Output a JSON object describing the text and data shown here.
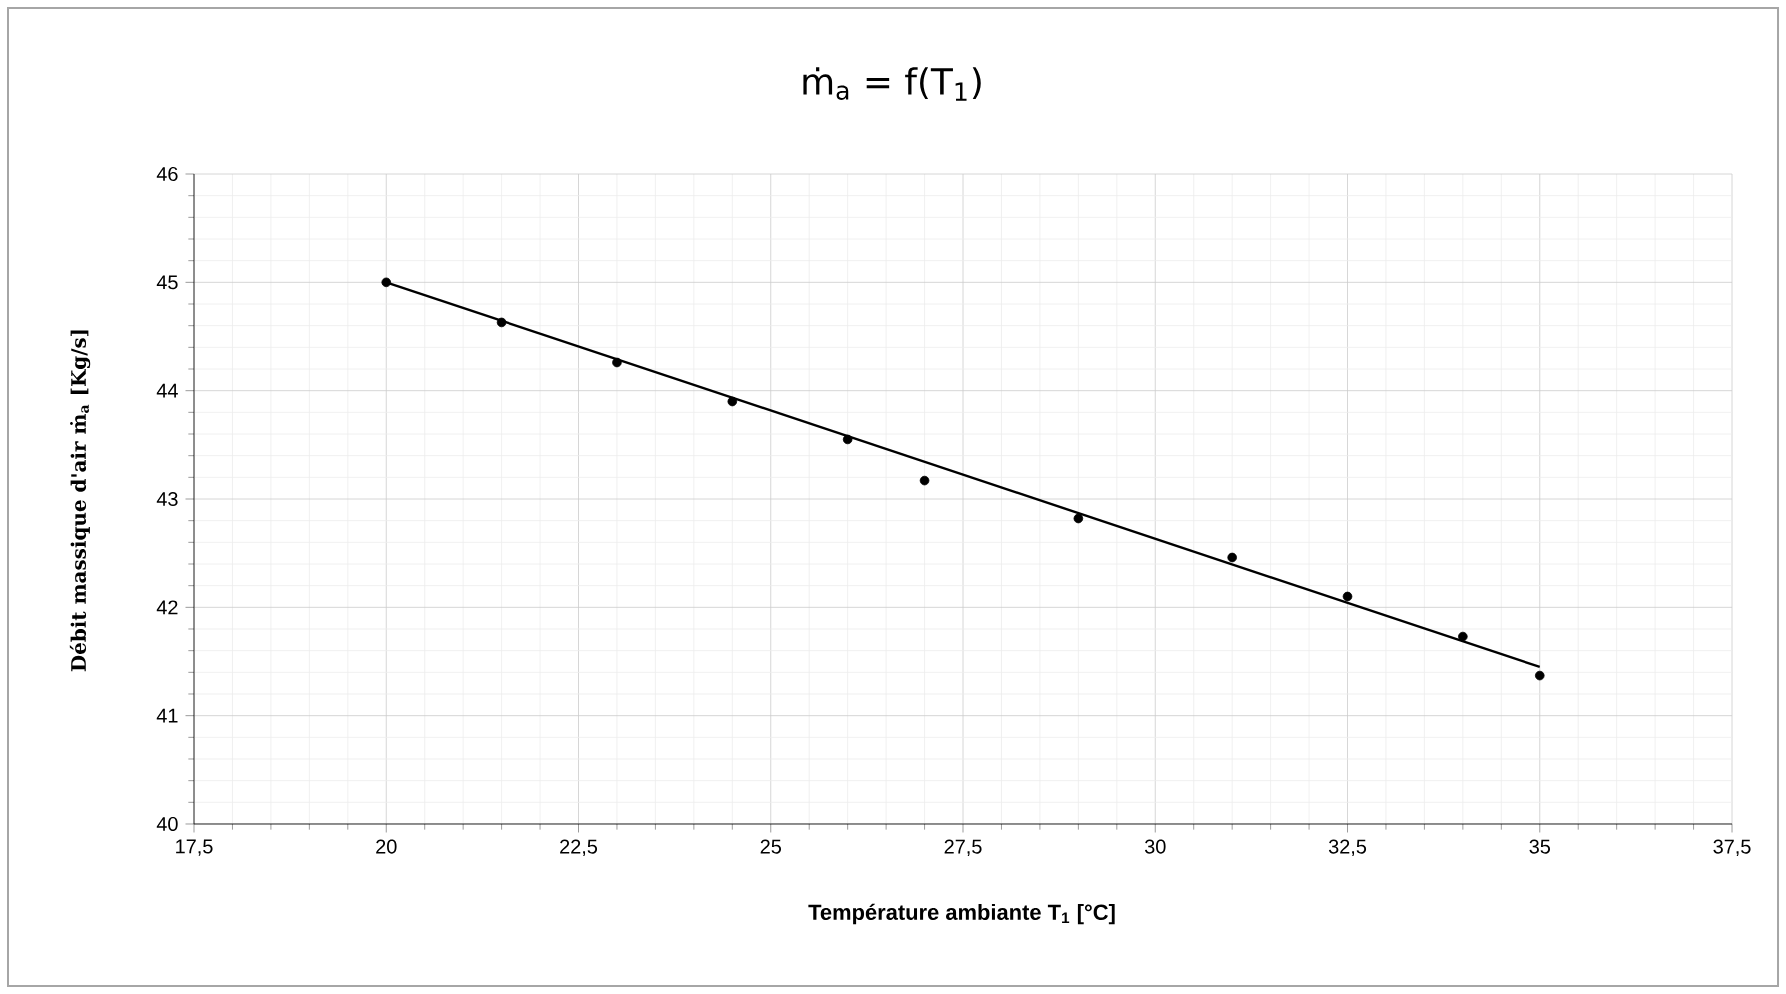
{
  "chart_data": {
    "type": "scatter",
    "title": "ṁ$_{a}$ = f(T$_{1}$)",
    "xlabel": "Température ambiante T$_{1}$ [°C]",
    "ylabel": "Débit massique d'air ṁ$_{a}$ [Kg/s]",
    "series": [
      {
        "color": "#000000",
        "marker": "circle",
        "x": [
          20,
          21.5,
          23,
          24.5,
          26,
          27,
          29,
          31,
          32.5,
          34,
          35
        ],
        "values": [
          45.0,
          44.63,
          44.26,
          43.9,
          43.55,
          43.17,
          42.82,
          42.46,
          42.1,
          41.73,
          41.37
        ]
      },
      {
        "type": "line",
        "color": "#000000",
        "marker": "none",
        "line_style": "solid",
        "x": [
          20,
          35
        ],
        "values": [
          45.0,
          41.45
        ]
      }
    ],
    "xlim": [
      17.5,
      37.5
    ],
    "xticks": [
      {
        "value": 17.5,
        "label": "17,5"
      },
      20,
      {
        "value": 22.5,
        "label": "22,5"
      },
      25,
      {
        "value": 27.5,
        "label": "27,5"
      },
      30,
      {
        "value": 32.5,
        "label": "32,5"
      },
      35,
      {
        "value": 37.5,
        "label": "37,5"
      }
    ],
    "ylim": [
      40,
      46
    ],
    "yticks": [
      40,
      41,
      42,
      43,
      44,
      45,
      46
    ],
    "grid": true
  }
}
